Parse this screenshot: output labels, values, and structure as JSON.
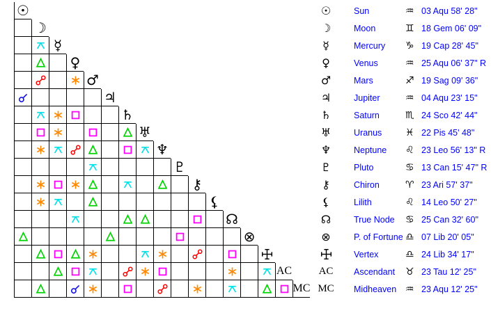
{
  "aspect_colors": {
    "conjunction": "#1414e0",
    "sextile": "#ff8800",
    "square": "#ff00ff",
    "trine": "#00d400",
    "opposition": "#ff0000",
    "quincunx": "#00e0e8"
  },
  "text_colors": {
    "legend_text": "#0000ff",
    "glyphs": "#000000"
  },
  "grid": {
    "rows": [
      {
        "key": "sun",
        "planet": "Sun",
        "glyph": "☉",
        "glyph_kind": "symbol",
        "aspects": []
      },
      {
        "key": "moon",
        "planet": "Moon",
        "glyph": "☽",
        "glyph_kind": "symbol",
        "aspects": [
          ""
        ]
      },
      {
        "key": "mercury",
        "planet": "Mercury",
        "glyph": "☿",
        "glyph_kind": "symbol",
        "aspects": [
          "",
          "quincunx"
        ]
      },
      {
        "key": "venus",
        "planet": "Venus",
        "glyph": "♀",
        "glyph_kind": "symbol",
        "aspects": [
          "",
          "trine",
          ""
        ]
      },
      {
        "key": "mars",
        "planet": "Mars",
        "glyph": "♂",
        "glyph_kind": "symbol",
        "aspects": [
          "",
          "opposition",
          "",
          "sextile"
        ]
      },
      {
        "key": "jupiter",
        "planet": "Jupiter",
        "glyph": "♃",
        "glyph_kind": "symbol",
        "aspects": [
          "conjunction",
          "",
          "",
          "",
          ""
        ]
      },
      {
        "key": "saturn",
        "planet": "Saturn",
        "glyph": "♄",
        "glyph_kind": "symbol",
        "aspects": [
          "",
          "quincunx",
          "sextile",
          "square",
          "",
          ""
        ]
      },
      {
        "key": "uranus",
        "planet": "Uranus",
        "glyph": "♅",
        "glyph_kind": "symbol",
        "aspects": [
          "",
          "square",
          "sextile",
          "",
          "square",
          "",
          "trine"
        ]
      },
      {
        "key": "neptune",
        "planet": "Neptune",
        "glyph": "♆",
        "glyph_kind": "symbol",
        "aspects": [
          "",
          "sextile",
          "quincunx",
          "opposition",
          "trine",
          "",
          "square",
          "quincunx"
        ]
      },
      {
        "key": "pluto",
        "planet": "Pluto",
        "glyph": "♇",
        "glyph_kind": "symbol",
        "aspects": [
          "",
          "",
          "",
          "",
          "quincunx",
          "",
          "",
          "",
          ""
        ]
      },
      {
        "key": "chiron",
        "planet": "Chiron",
        "glyph": "⚷",
        "glyph_kind": "symbol",
        "aspects": [
          "",
          "sextile",
          "square",
          "sextile",
          "trine",
          "",
          "quincunx",
          "",
          "trine",
          ""
        ]
      },
      {
        "key": "lilith",
        "planet": "Lilith",
        "glyph": "⚸",
        "glyph_kind": "symbol",
        "aspects": [
          "",
          "sextile",
          "quincunx",
          "",
          "trine",
          "",
          "",
          "",
          "",
          "",
          ""
        ]
      },
      {
        "key": "true-node",
        "planet": "True Node",
        "glyph": "☊",
        "glyph_kind": "symbol",
        "aspects": [
          "",
          "",
          "",
          "quincunx",
          "",
          "",
          "trine",
          "trine",
          "",
          "",
          "square",
          ""
        ]
      },
      {
        "key": "p-of-fortune",
        "planet": "P. of Fortune",
        "glyph": "⊗",
        "glyph_kind": "symbol",
        "aspects": [
          "trine",
          "",
          "",
          "",
          "",
          "trine",
          "",
          "",
          "",
          "square",
          "",
          "",
          ""
        ]
      },
      {
        "key": "vertex",
        "planet": "Vertex",
        "glyph": "",
        "glyph_kind": "vertex-icon",
        "aspects": [
          "",
          "trine",
          "square",
          "trine",
          "sextile",
          "",
          "",
          "quincunx",
          "sextile",
          "",
          "opposition",
          "",
          "square",
          ""
        ]
      },
      {
        "key": "ascendant",
        "planet": "Ascendant",
        "glyph": "AC",
        "glyph_kind": "serif",
        "aspects": [
          "",
          "",
          "trine",
          "square",
          "quincunx",
          "",
          "opposition",
          "sextile",
          "square",
          "",
          "",
          "",
          "sextile",
          "",
          "quincunx"
        ]
      },
      {
        "key": "midheaven",
        "planet": "Midheaven",
        "glyph": "MC",
        "glyph_kind": "serif",
        "aspects": [
          "",
          "trine",
          "",
          "conjunction",
          "sextile",
          "",
          "square",
          "",
          "opposition",
          "",
          "sextile",
          "",
          "quincunx",
          "",
          "trine",
          "square"
        ]
      }
    ]
  },
  "legend": {
    "rows": [
      {
        "key": "sun",
        "glyph": "☉",
        "glyph_kind": "symbol",
        "name": "Sun",
        "sign": "♒",
        "position": "03 Aqu 58' 28\""
      },
      {
        "key": "moon",
        "glyph": "☽",
        "glyph_kind": "symbol",
        "name": "Moon",
        "sign": "♊",
        "position": "18 Gem 06' 09\""
      },
      {
        "key": "mercury",
        "glyph": "☿",
        "glyph_kind": "symbol",
        "name": "Mercury",
        "sign": "♑",
        "position": "19 Cap 28' 45\""
      },
      {
        "key": "venus",
        "glyph": "♀",
        "glyph_kind": "symbol",
        "name": "Venus",
        "sign": "♒",
        "position": "25 Aqu 06' 37\" R"
      },
      {
        "key": "mars",
        "glyph": "♂",
        "glyph_kind": "symbol",
        "name": "Mars",
        "sign": "♐",
        "position": "19 Sag 09' 36\""
      },
      {
        "key": "jupiter",
        "glyph": "♃",
        "glyph_kind": "symbol",
        "name": "Jupiter",
        "sign": "♒",
        "position": "04 Aqu 23' 15\""
      },
      {
        "key": "saturn",
        "glyph": "♄",
        "glyph_kind": "symbol",
        "name": "Saturn",
        "sign": "♏",
        "position": "24 Sco 42' 44\""
      },
      {
        "key": "uranus",
        "glyph": "♅",
        "glyph_kind": "symbol",
        "name": "Uranus",
        "sign": "♓",
        "position": "22 Pis 45' 48\""
      },
      {
        "key": "neptune",
        "glyph": "♆",
        "glyph_kind": "symbol",
        "name": "Neptune",
        "sign": "♌",
        "position": "23 Leo 56' 13\" R"
      },
      {
        "key": "pluto",
        "glyph": "♇",
        "glyph_kind": "symbol",
        "name": "Pluto",
        "sign": "♋",
        "position": "13 Can 15' 47\" R"
      },
      {
        "key": "chiron",
        "glyph": "⚷",
        "glyph_kind": "symbol",
        "name": "Chiron",
        "sign": "♈",
        "position": "23 Ari 57' 37\""
      },
      {
        "key": "lilith",
        "glyph": "⚸",
        "glyph_kind": "symbol",
        "name": "Lilith",
        "sign": "♌",
        "position": "14 Leo 50' 27\""
      },
      {
        "key": "true-node",
        "glyph": "☊",
        "glyph_kind": "symbol",
        "name": "True Node",
        "sign": "♋",
        "position": "25 Can 32' 60\""
      },
      {
        "key": "p-of-fortune",
        "glyph": "⊗",
        "glyph_kind": "symbol",
        "name": "P. of Fortune",
        "sign": "♎",
        "position": "07 Lib 20' 05\""
      },
      {
        "key": "vertex",
        "glyph": "",
        "glyph_kind": "vertex-icon",
        "name": "Vertex",
        "sign": "♎",
        "position": "24 Lib 34' 17\""
      },
      {
        "key": "ascendant",
        "glyph": "AC",
        "glyph_kind": "serif",
        "name": "Ascendant",
        "sign": "♉",
        "position": "23 Tau 12' 25\""
      },
      {
        "key": "midheaven",
        "glyph": "MC",
        "glyph_kind": "serif",
        "name": "Midheaven",
        "sign": "♒",
        "position": "23 Aqu 12' 25\""
      }
    ]
  }
}
